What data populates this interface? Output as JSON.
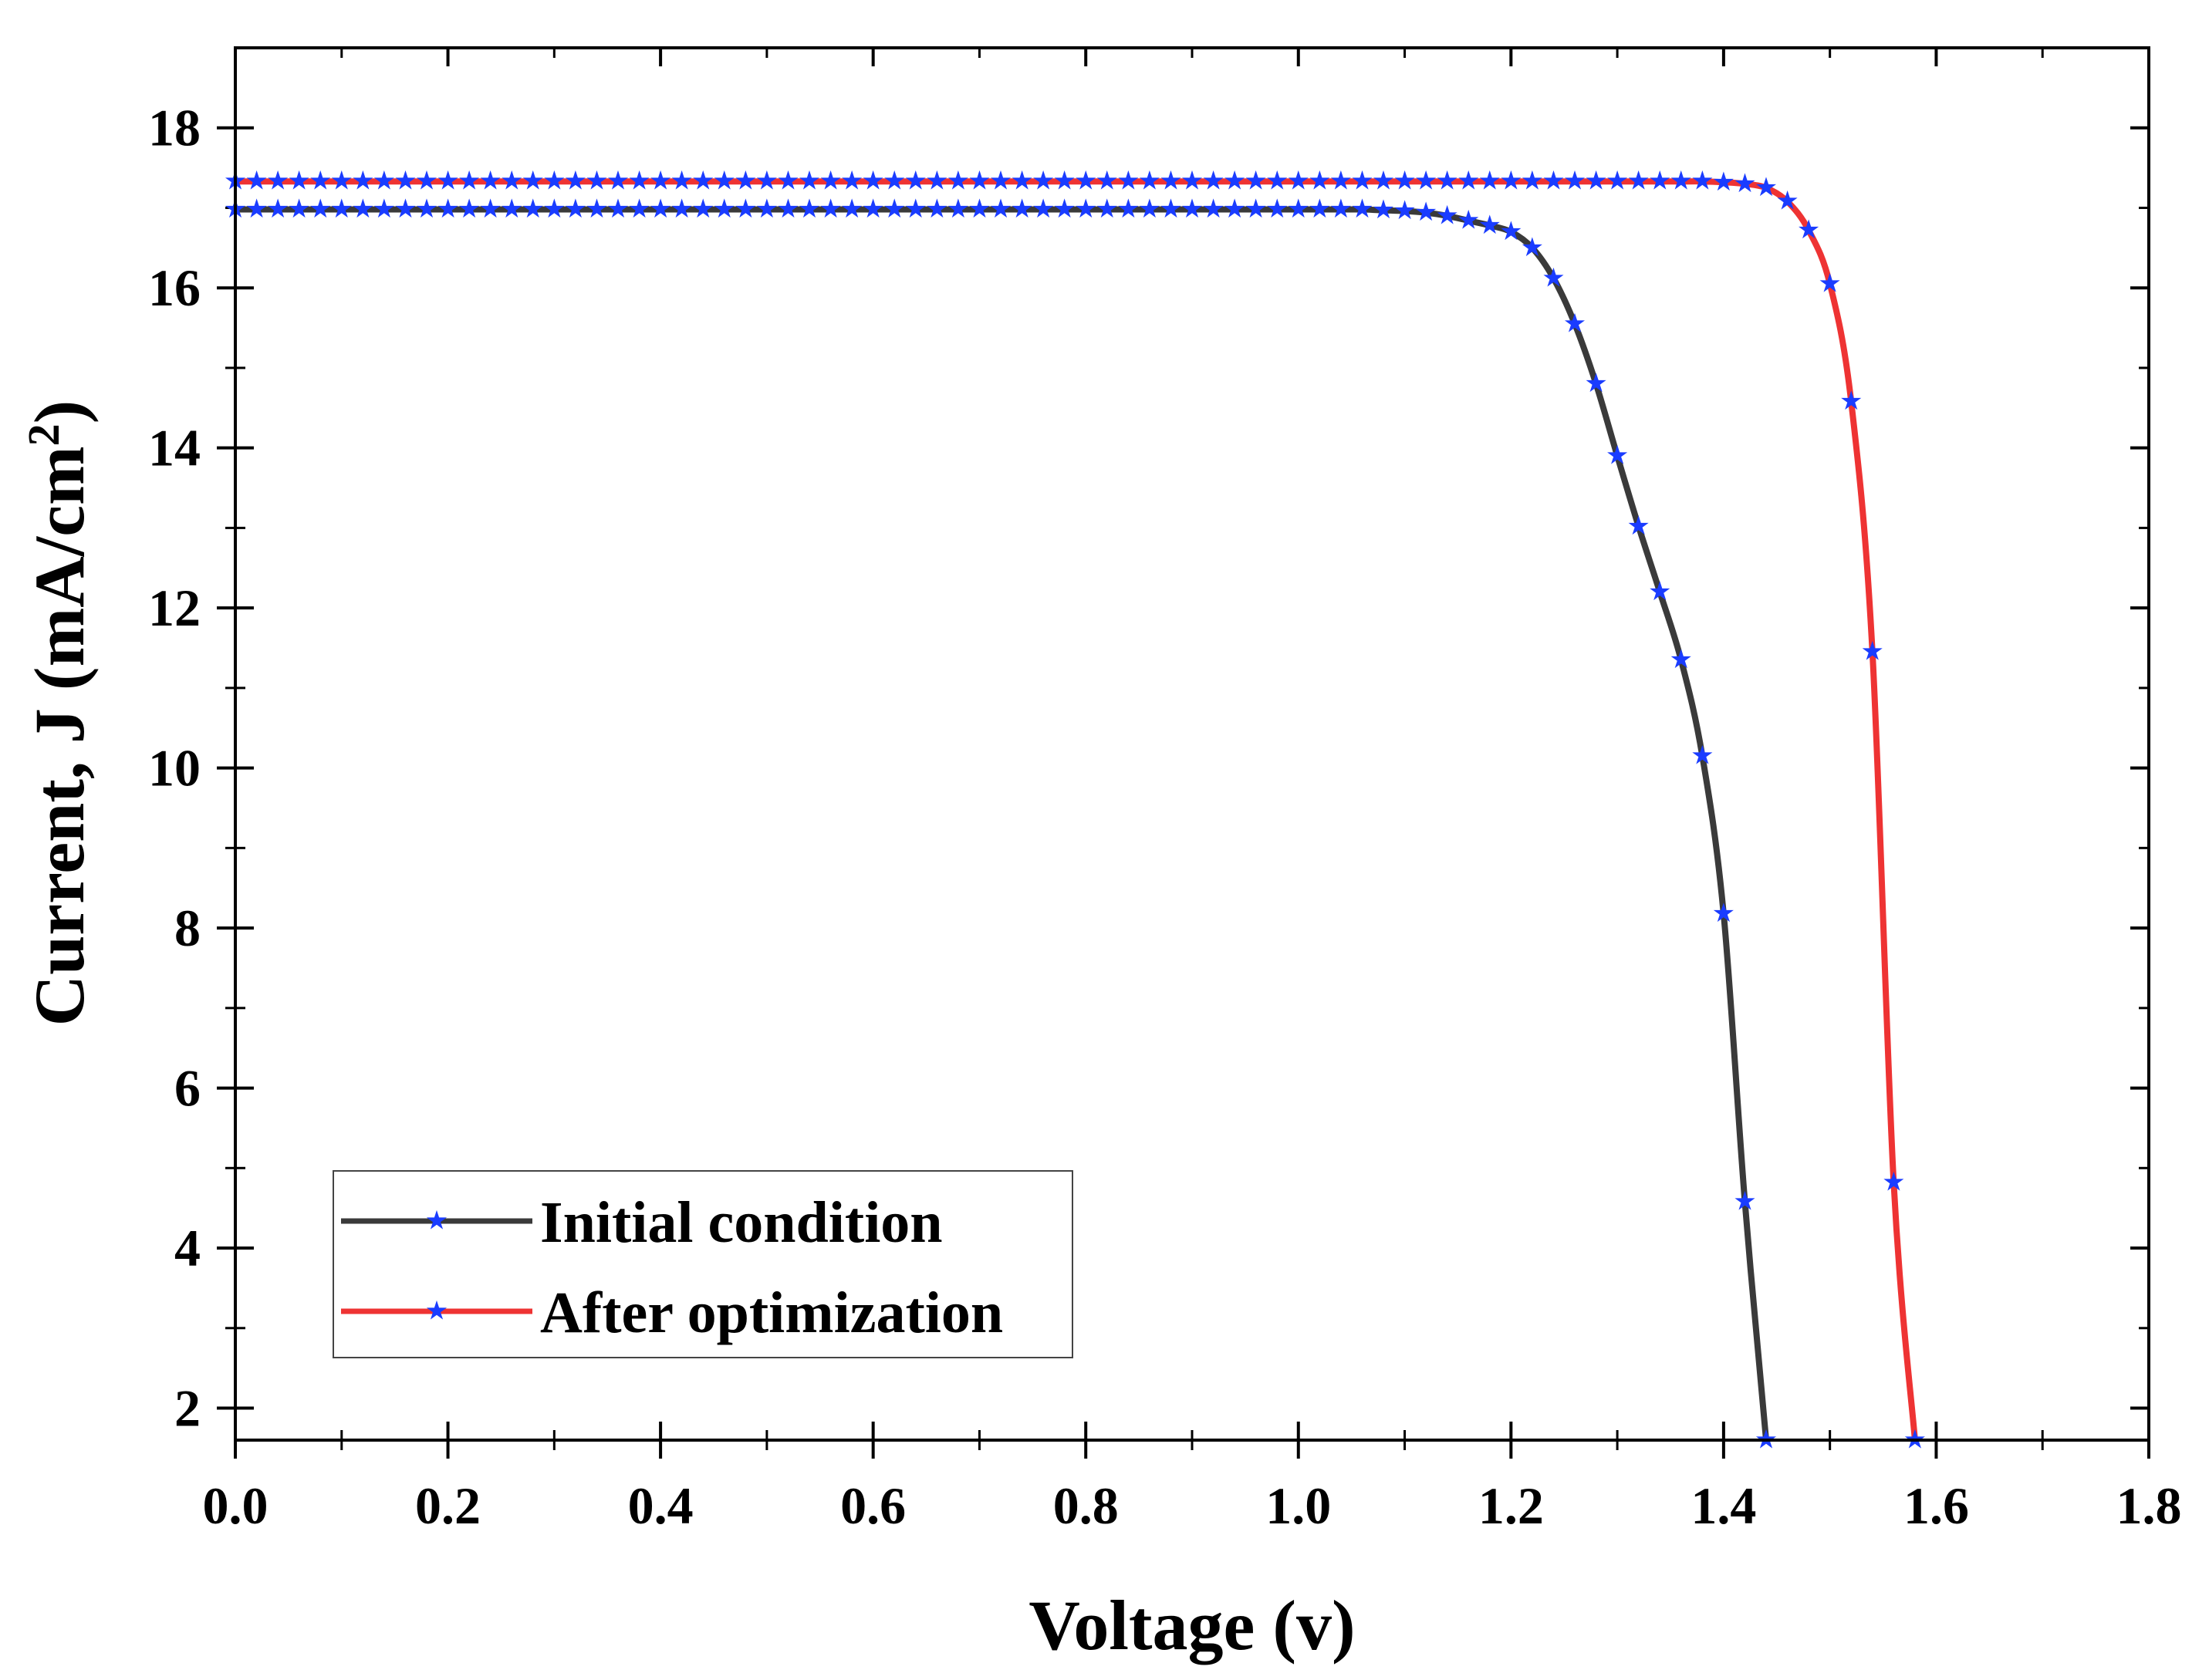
{
  "chart_data": {
    "type": "line",
    "title": "",
    "xlabel": "Voltage (v)",
    "ylabel_main": "Current, J (mA/cm",
    "ylabel_sup": "2",
    "ylabel_close": ")",
    "xlim": [
      0.0,
      1.8
    ],
    "ylim": [
      1.6,
      19.0
    ],
    "xticks": [
      "0.0",
      "0.2",
      "0.4",
      "0.6",
      "0.8",
      "1.0",
      "1.2",
      "1.4",
      "1.6",
      "1.8"
    ],
    "xtick_values": [
      0.0,
      0.2,
      0.4,
      0.6,
      0.8,
      1.0,
      1.2,
      1.4,
      1.6,
      1.8
    ],
    "yticks": [
      "2",
      "4",
      "6",
      "8",
      "10",
      "12",
      "14",
      "16",
      "18"
    ],
    "ytick_values": [
      2,
      4,
      6,
      8,
      10,
      12,
      14,
      16,
      18
    ],
    "grid": false,
    "legend_position": "bottom-left",
    "marker_color": "#1a3cff",
    "series": [
      {
        "name": "Initial condition",
        "color": "#3a3a3a",
        "x": [
          0.0,
          0.02,
          0.04,
          0.06,
          0.08,
          0.1,
          0.12,
          0.14,
          0.16,
          0.18,
          0.2,
          0.22,
          0.24,
          0.26,
          0.28,
          0.3,
          0.32,
          0.34,
          0.36,
          0.38,
          0.4,
          0.42,
          0.44,
          0.46,
          0.48,
          0.5,
          0.52,
          0.54,
          0.56,
          0.58,
          0.6,
          0.62,
          0.64,
          0.66,
          0.68,
          0.7,
          0.72,
          0.74,
          0.76,
          0.78,
          0.8,
          0.82,
          0.84,
          0.86,
          0.88,
          0.9,
          0.92,
          0.94,
          0.96,
          0.98,
          1.0,
          1.02,
          1.04,
          1.06,
          1.08,
          1.1,
          1.12,
          1.14,
          1.16,
          1.18,
          1.2,
          1.22,
          1.24,
          1.26,
          1.28,
          1.3,
          1.32,
          1.34,
          1.36,
          1.38,
          1.4,
          1.42,
          1.44
        ],
        "y": [
          16.98,
          16.98,
          16.98,
          16.98,
          16.98,
          16.98,
          16.98,
          16.98,
          16.98,
          16.98,
          16.98,
          16.98,
          16.98,
          16.98,
          16.98,
          16.98,
          16.98,
          16.98,
          16.98,
          16.98,
          16.98,
          16.98,
          16.98,
          16.98,
          16.98,
          16.98,
          16.98,
          16.98,
          16.98,
          16.98,
          16.98,
          16.98,
          16.98,
          16.98,
          16.98,
          16.98,
          16.98,
          16.98,
          16.98,
          16.98,
          16.98,
          16.98,
          16.98,
          16.98,
          16.98,
          16.98,
          16.98,
          16.98,
          16.98,
          16.98,
          16.98,
          16.98,
          16.98,
          16.98,
          16.97,
          16.96,
          16.94,
          16.9,
          16.84,
          16.78,
          16.7,
          16.5,
          16.12,
          15.55,
          14.8,
          13.9,
          13.02,
          12.2,
          11.35,
          10.15,
          8.18,
          4.58,
          1.6
        ]
      },
      {
        "name": "After optimization",
        "color": "#ee3333",
        "x": [
          0.0,
          0.02,
          0.04,
          0.06,
          0.08,
          0.1,
          0.12,
          0.14,
          0.16,
          0.18,
          0.2,
          0.22,
          0.24,
          0.26,
          0.28,
          0.3,
          0.32,
          0.34,
          0.36,
          0.38,
          0.4,
          0.42,
          0.44,
          0.46,
          0.48,
          0.5,
          0.52,
          0.54,
          0.56,
          0.58,
          0.6,
          0.62,
          0.64,
          0.66,
          0.68,
          0.7,
          0.72,
          0.74,
          0.76,
          0.78,
          0.8,
          0.82,
          0.84,
          0.86,
          0.88,
          0.9,
          0.92,
          0.94,
          0.96,
          0.98,
          1.0,
          1.02,
          1.04,
          1.06,
          1.08,
          1.1,
          1.12,
          1.14,
          1.16,
          1.18,
          1.2,
          1.22,
          1.24,
          1.26,
          1.28,
          1.3,
          1.32,
          1.34,
          1.36,
          1.38,
          1.4,
          1.42,
          1.44,
          1.46,
          1.48,
          1.5,
          1.52,
          1.54,
          1.56,
          1.58
        ],
        "y": [
          17.33,
          17.33,
          17.33,
          17.33,
          17.33,
          17.33,
          17.33,
          17.33,
          17.33,
          17.33,
          17.33,
          17.33,
          17.33,
          17.33,
          17.33,
          17.33,
          17.33,
          17.33,
          17.33,
          17.33,
          17.33,
          17.33,
          17.33,
          17.33,
          17.33,
          17.33,
          17.33,
          17.33,
          17.33,
          17.33,
          17.33,
          17.33,
          17.33,
          17.33,
          17.33,
          17.33,
          17.33,
          17.33,
          17.33,
          17.33,
          17.33,
          17.33,
          17.33,
          17.33,
          17.33,
          17.33,
          17.33,
          17.33,
          17.33,
          17.33,
          17.33,
          17.33,
          17.33,
          17.33,
          17.33,
          17.33,
          17.33,
          17.33,
          17.33,
          17.33,
          17.33,
          17.33,
          17.33,
          17.33,
          17.33,
          17.33,
          17.33,
          17.33,
          17.33,
          17.33,
          17.32,
          17.3,
          17.25,
          17.08,
          16.72,
          16.05,
          14.58,
          11.45,
          4.82,
          1.6
        ]
      }
    ]
  }
}
